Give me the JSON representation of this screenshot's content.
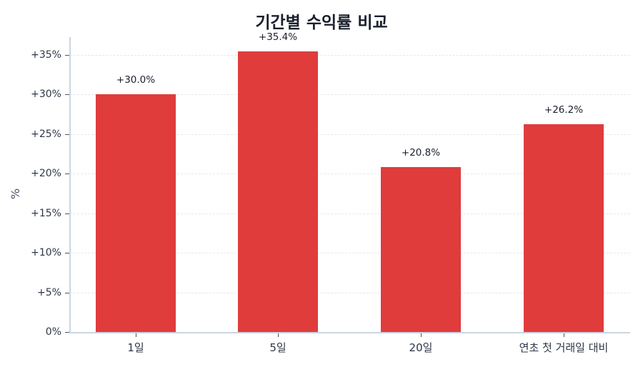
{
  "chart_data": {
    "type": "bar",
    "title": "기간별 수익률 비교",
    "xlabel": "",
    "ylabel": "%",
    "categories": [
      "1일",
      "5일",
      "20일",
      "연초 첫 거래일 대비"
    ],
    "values": [
      30.0,
      35.4,
      20.8,
      26.2
    ],
    "data_labels": [
      "+30.0%",
      "+35.4%",
      "+20.8%",
      "+26.2%"
    ],
    "ylim": [
      0,
      37
    ],
    "yticks": [
      0,
      5,
      10,
      15,
      20,
      25,
      30,
      35
    ],
    "ytick_labels": [
      "0%",
      "+5%",
      "+10%",
      "+15%",
      "+20%",
      "+25%",
      "+30%",
      "+35%"
    ],
    "grid": true,
    "legend": null,
    "colors": {
      "bar": "#e03c3c",
      "grid": "#e2e8f0",
      "axis": "#cbd5e0",
      "title": "#1a202c"
    }
  }
}
